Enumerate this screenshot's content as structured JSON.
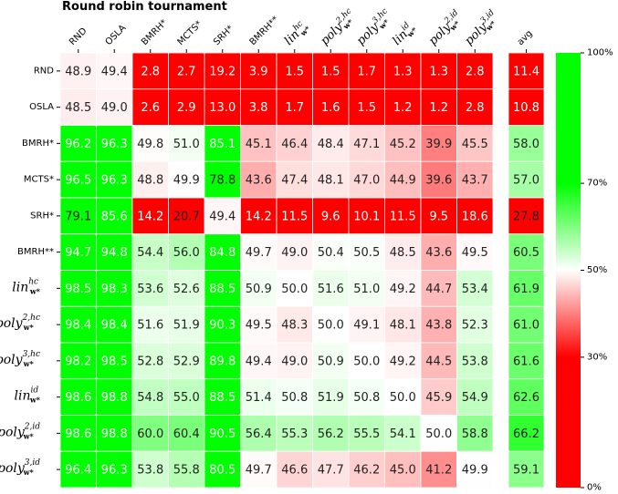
{
  "chart_data": {
    "type": "heatmap",
    "title": "Round robin tournament",
    "rows": [
      "RND",
      "OSLA",
      "BMRH*",
      "MCTS*",
      "SRH*",
      "BMRH**",
      "lin_w*^hc",
      "poly_w*^2,hc",
      "poly_w*^3,hc",
      "lin_w*^id",
      "poly_w*^2,id",
      "poly_w*^3,id"
    ],
    "columns": [
      "RND",
      "OSLA",
      "BMRH*",
      "MCTS*",
      "SRH*",
      "BMRH**",
      "lin_w*^hc",
      "poly_w*^2,hc",
      "poly_w*^3,hc",
      "lin_w*^id",
      "poly_w*^2,id",
      "poly_w*^3,id"
    ],
    "values": [
      [
        "48.9",
        "49.4",
        "2.8",
        "2.7",
        "19.2",
        "3.9",
        "1.5",
        "1.5",
        "1.7",
        "1.3",
        "1.3",
        "2.8"
      ],
      [
        "48.5",
        "49.0",
        "2.6",
        "2.9",
        "13.0",
        "3.8",
        "1.7",
        "1.6",
        "1.5",
        "1.2",
        "1.2",
        "2.8"
      ],
      [
        "96.2",
        "96.3",
        "49.8",
        "51.0",
        "85.1",
        "45.1",
        "46.4",
        "48.4",
        "47.1",
        "45.2",
        "39.9",
        "45.5"
      ],
      [
        "96.5",
        "96.3",
        "48.8",
        "49.9",
        "78.8",
        "43.6",
        "47.4",
        "48.1",
        "47.0",
        "44.9",
        "39.6",
        "43.7"
      ],
      [
        "79.1",
        "85.6",
        "14.2",
        "20.7",
        "49.4",
        "14.2",
        "11.5",
        "9.6",
        "10.1",
        "11.5",
        "9.5",
        "18.6"
      ],
      [
        "94.7",
        "94.8",
        "54.4",
        "56.0",
        "84.8",
        "49.7",
        "49.0",
        "50.4",
        "50.5",
        "48.5",
        "43.6",
        "49.5"
      ],
      [
        "98.5",
        "98.3",
        "53.6",
        "52.6",
        "88.5",
        "50.9",
        "50.0",
        "51.6",
        "51.0",
        "49.2",
        "44.7",
        "53.4"
      ],
      [
        "98.4",
        "98.4",
        "51.6",
        "51.9",
        "90.3",
        "49.5",
        "48.3",
        "50.0",
        "49.1",
        "48.1",
        "43.8",
        "52.3"
      ],
      [
        "98.2",
        "98.5",
        "52.8",
        "52.9",
        "89.8",
        "49.4",
        "49.0",
        "50.9",
        "50.0",
        "49.2",
        "44.5",
        "53.8"
      ],
      [
        "98.6",
        "98.8",
        "54.8",
        "55.0",
        "88.5",
        "51.4",
        "50.8",
        "51.9",
        "50.8",
        "50.0",
        "45.9",
        "54.9"
      ],
      [
        "98.6",
        "98.8",
        "60.0",
        "60.4",
        "90.5",
        "56.4",
        "55.3",
        "56.2",
        "55.5",
        "54.1",
        "50.0",
        "58.8"
      ],
      [
        "96.4",
        "96.3",
        "53.8",
        "55.8",
        "80.5",
        "49.7",
        "46.6",
        "47.7",
        "46.2",
        "45.0",
        "41.2",
        "49.9"
      ]
    ],
    "avg_label": "avg",
    "avg": [
      "11.4",
      "10.8",
      "58.0",
      "57.0",
      "27.8",
      "60.5",
      "61.9",
      "61.0",
      "61.6",
      "62.6",
      "66.2",
      "59.1"
    ],
    "colorbar": {
      "ticks": [
        "100%",
        "70%",
        "50%",
        "30%",
        "0%"
      ],
      "range": [
        0,
        100
      ],
      "stops": [
        {
          "value": 0,
          "color": "#ff0000"
        },
        {
          "value": 30,
          "color": "#ff0000"
        },
        {
          "value": 50,
          "color": "#ffffff"
        },
        {
          "value": 70,
          "color": "#00ff00"
        },
        {
          "value": 100,
          "color": "#00ff00"
        }
      ]
    },
    "grid": false
  }
}
